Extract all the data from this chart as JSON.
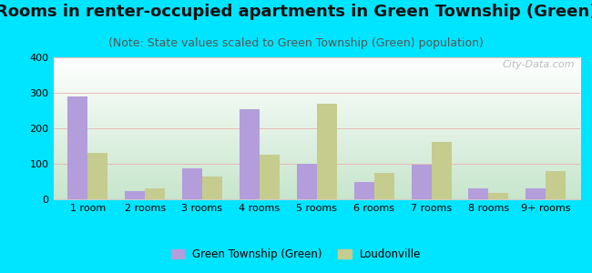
{
  "title": "Rooms in renter-occupied apartments in Green Township (Green)",
  "subtitle": "(Note: State values scaled to Green Township (Green) population)",
  "categories": [
    "1 room",
    "2 rooms",
    "3 rooms",
    "4 rooms",
    "5 rooms",
    "6 rooms",
    "7 rooms",
    "8 rooms",
    "9+ rooms"
  ],
  "green_township": [
    290,
    22,
    88,
    255,
    100,
    50,
    98,
    30,
    30
  ],
  "loudonville": [
    130,
    30,
    65,
    125,
    268,
    75,
    162,
    18,
    80
  ],
  "bar_color_green": "#b39ddb",
  "bar_color_lou": "#c5cc8e",
  "background_outer": "#00e5ff",
  "ylim": [
    0,
    400
  ],
  "yticks": [
    0,
    100,
    200,
    300,
    400
  ],
  "title_fontsize": 13,
  "subtitle_fontsize": 9,
  "watermark": "City-Data.com",
  "legend_label_green": "Green Township (Green)",
  "legend_label_lou": "Loudonville"
}
